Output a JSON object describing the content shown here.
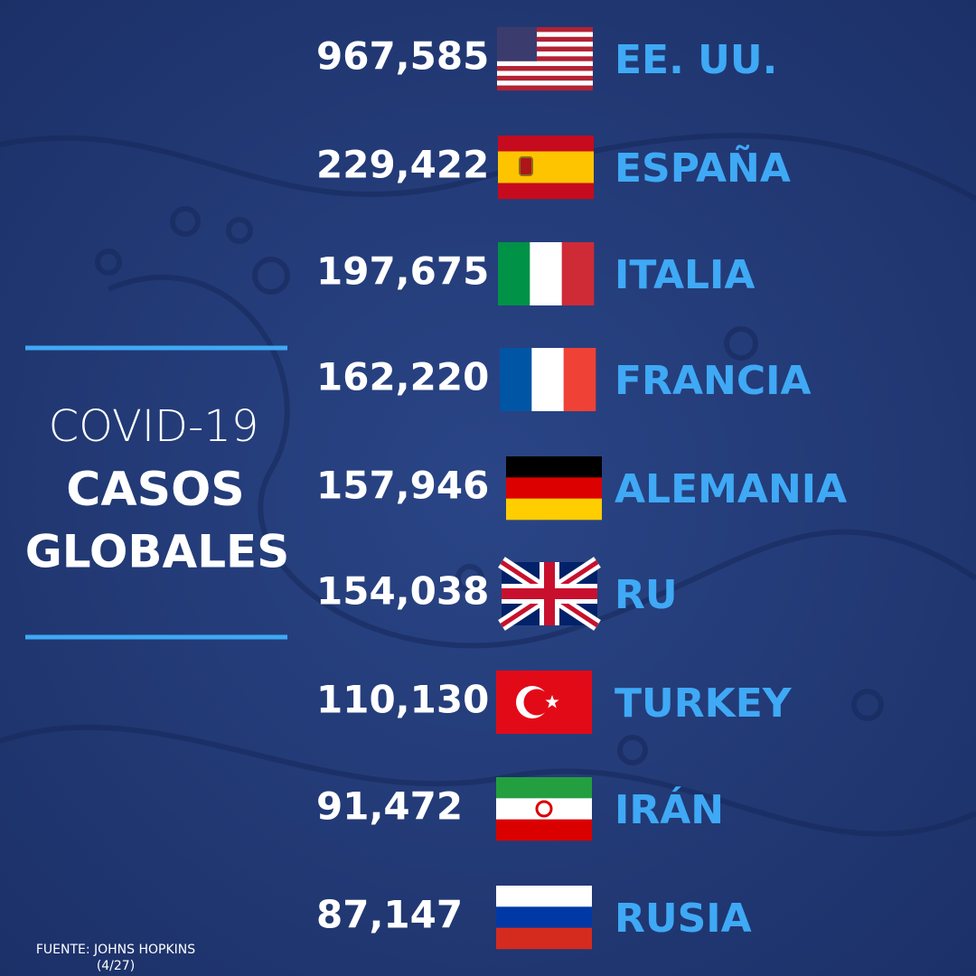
{
  "title": {
    "line1": "COVID-19",
    "line2": "CASOS",
    "line3": "GLOBALES"
  },
  "rows": [
    {
      "cases": "967,585",
      "country": "EE. UU."
    },
    {
      "cases": "229,422",
      "country": "ESPAÑA"
    },
    {
      "cases": "197,675",
      "country": "ITALIA"
    },
    {
      "cases": "162,220",
      "country": "FRANCIA"
    },
    {
      "cases": "157,946",
      "country": "ALEMANIA"
    },
    {
      "cases": "154,038",
      "country": "RU"
    },
    {
      "cases": "110,130",
      "country": "TURKEY"
    },
    {
      "cases": "91,472",
      "country": "IRÁN"
    },
    {
      "cases": "87,147",
      "country": "RUSIA"
    }
  ],
  "source": {
    "line1": "FUENTE: JOHNS HOPKINS",
    "line2": "(4/27)"
  }
}
